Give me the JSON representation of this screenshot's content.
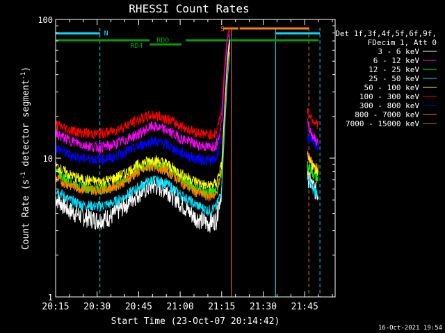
{
  "chart_data": {
    "type": "line",
    "title": "RHESSI Count Rates",
    "xlabel": "Start Time (23-Oct-07 20:14:42)",
    "ylabel_main": "Count Rate (s",
    "ylabel_sup1": "-1",
    "ylabel_mid": " detector segment",
    "ylabel_sup2": "-1",
    "ylabel_end": ")",
    "yscale": "log",
    "xlim_minutes": [
      0,
      101
    ],
    "ylim": [
      1,
      100
    ],
    "x_ticks": [
      {
        "label": "20:15",
        "t": 0
      },
      {
        "label": "20:30",
        "t": 15
      },
      {
        "label": "20:45",
        "t": 30
      },
      {
        "label": "21:00",
        "t": 45
      },
      {
        "label": "21:15",
        "t": 60
      },
      {
        "label": "21:30",
        "t": 75
      },
      {
        "label": "21:45",
        "t": 90
      }
    ],
    "y_ticks": [
      {
        "label": "1",
        "v": 1
      },
      {
        "label": "10",
        "v": 10
      },
      {
        "label": "100",
        "v": 100
      }
    ],
    "legend_title1": "Det 1f,3f,4f,5f,6f,9f,",
    "legend_title2": "FDecim 1, Att 0",
    "series": [
      {
        "name": "3 - 6 keV",
        "color": "#ffffff",
        "t": [
          0,
          5,
          10,
          15,
          20,
          25,
          30,
          35,
          40,
          45,
          50,
          55,
          58,
          60,
          61,
          62,
          63
        ],
        "v": [
          5.2,
          4.2,
          3.8,
          3.6,
          3.8,
          4.6,
          5.6,
          6.4,
          6.0,
          4.8,
          3.8,
          3.4,
          3.6,
          6,
          20,
          50,
          80
        ],
        "t2": [
          91,
          92,
          93,
          94,
          95
        ],
        "v2": [
          7.5,
          6.8,
          6.3,
          5.8,
          5.5
        ]
      },
      {
        "name": "6 - 12 keV",
        "color": "#ff00ff",
        "t": [
          0,
          5,
          10,
          15,
          20,
          25,
          30,
          35,
          40,
          45,
          50,
          55,
          58,
          60,
          61,
          62,
          63
        ],
        "v": [
          15,
          13.5,
          12.5,
          12,
          12.3,
          13.5,
          15,
          17,
          16,
          14,
          12.8,
          12,
          12.5,
          18,
          40,
          70,
          85
        ],
        "t2": [
          91,
          92,
          93,
          94,
          95
        ],
        "v2": [
          18,
          16,
          14.5,
          13.5,
          13
        ]
      },
      {
        "name": "12 - 25 keV",
        "color": "#00ff00",
        "t": [
          0,
          5,
          10,
          15,
          20,
          25,
          30,
          35,
          40,
          45,
          50,
          55,
          58,
          60,
          61,
          62,
          63
        ],
        "v": [
          8,
          6.8,
          6.2,
          6,
          6.2,
          7,
          8.4,
          9.2,
          8.6,
          7.2,
          6.2,
          5.6,
          5.8,
          8,
          20,
          45,
          70
        ],
        "t2": [
          91,
          92,
          93,
          94,
          95
        ],
        "v2": [
          9,
          8.4,
          7.8,
          7.3,
          7
        ]
      },
      {
        "name": "25 - 50 keV",
        "color": "#00e0ff",
        "t": [
          0,
          5,
          10,
          15,
          20,
          25,
          30,
          35,
          40,
          45,
          50,
          55,
          58,
          60,
          61,
          62,
          63
        ],
        "v": [
          6,
          5,
          4.6,
          4.5,
          4.7,
          5.3,
          6.2,
          7,
          6.6,
          5.5,
          4.7,
          4.2,
          4.4,
          6,
          15,
          35,
          60
        ],
        "t2": [
          91,
          92,
          93,
          94,
          95
        ],
        "v2": [
          7,
          6.5,
          6,
          5.8,
          5.6
        ]
      },
      {
        "name": "50 - 100 keV",
        "color": "#ffff00",
        "t": [
          0,
          5,
          10,
          15,
          20,
          25,
          30,
          35,
          40,
          45,
          50,
          55,
          58,
          60,
          61,
          62,
          63
        ],
        "v": [
          8.8,
          7.6,
          7,
          6.8,
          7,
          7.8,
          9,
          9.8,
          9.2,
          7.8,
          6.9,
          6.3,
          6.6,
          9,
          22,
          48,
          72
        ],
        "t2": [
          91,
          92,
          93,
          94,
          95
        ],
        "v2": [
          10,
          9.4,
          8.8,
          8.3,
          8
        ]
      },
      {
        "name": "100 - 300 keV",
        "color": "#ff0000",
        "t": [
          0,
          5,
          10,
          15,
          20,
          25,
          30,
          35,
          40,
          45,
          50,
          55,
          58,
          60,
          61,
          62,
          63
        ],
        "v": [
          17.5,
          16,
          15.2,
          15,
          15.5,
          17,
          19,
          20.5,
          19.5,
          17.2,
          15.6,
          14.8,
          15.2,
          22,
          45,
          75,
          90
        ],
        "t2": [
          91,
          92,
          93,
          94,
          95
        ],
        "v2": [
          22,
          20.5,
          19,
          18,
          17.5
        ]
      },
      {
        "name": "300 - 800 keV",
        "color": "#0000ff",
        "t": [
          0,
          5,
          10,
          15,
          20,
          25,
          30,
          35,
          40,
          45,
          50,
          55,
          58,
          60,
          61,
          62,
          63
        ],
        "v": [
          12,
          10.6,
          10,
          9.8,
          10,
          11,
          12.2,
          13.4,
          12.6,
          11,
          10,
          9.6,
          9.8,
          14,
          30,
          60,
          80
        ],
        "t2": [
          91,
          92,
          93,
          94,
          95
        ],
        "v2": [
          14.5,
          13.5,
          13,
          12.5,
          12.2
        ]
      },
      {
        "name": "800 - 7000 keV",
        "color": "#ff8000",
        "t": [
          0,
          5,
          10,
          15,
          20,
          25,
          30,
          35,
          40,
          45,
          50,
          55,
          58,
          60,
          61,
          62,
          63
        ],
        "v": [
          7.2,
          6.4,
          6,
          5.9,
          6.1,
          6.8,
          8,
          8.8,
          8.2,
          6.8,
          5.8,
          5.3,
          5.5,
          8,
          18,
          42,
          68
        ],
        "t2": [
          91,
          92,
          93,
          94,
          95
        ],
        "v2": [
          10.5,
          9.6,
          9,
          8.6,
          8.3
        ]
      },
      {
        "name": "7000 - 15000 keV",
        "color": "#b08000",
        "t": [],
        "v": [],
        "t2": [],
        "v2": []
      }
    ],
    "annotations": [
      {
        "label": "N",
        "color": "#00e0ff"
      },
      {
        "label": "RD0",
        "color": "#00a000"
      },
      {
        "label": "RD4",
        "color": "#00a000"
      },
      {
        "label": "S",
        "color": "#ff8000"
      }
    ],
    "events": {
      "night_bars": [
        [
          0,
          16
        ],
        [
          79.5,
          95.5
        ]
      ],
      "night_solid_lines": [
        0,
        79.5
      ],
      "night_dashed_lines": [
        16,
        95.5
      ],
      "saa_bars": [
        [
          60.5,
          66
        ],
        [
          66.5,
          91.5
        ]
      ],
      "saa_solid_line": 63.5,
      "saa_dashed_line": 91.5,
      "flag_segments": [
        [
          0,
          34
        ],
        [
          47,
          95
        ]
      ],
      "flag_low_segment": [
        34,
        45.5
      ]
    }
  },
  "footer": {
    "timestamp": "16-Oct-2021 19:54"
  }
}
